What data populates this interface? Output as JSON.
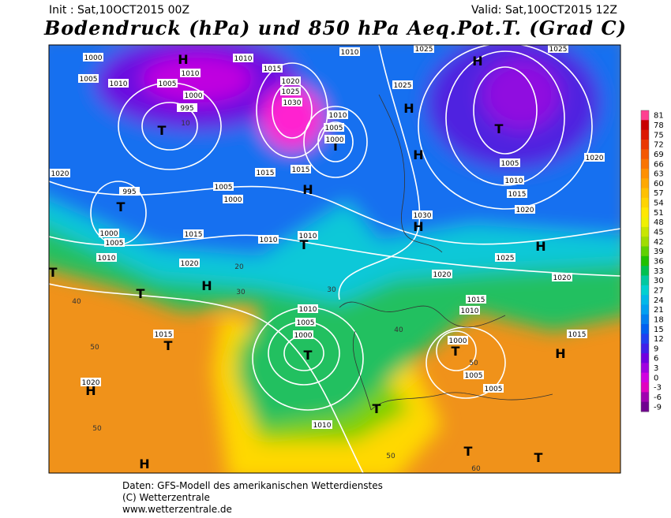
{
  "header": {
    "init": "Init : Sat,10OCT2015 00Z",
    "valid": "Valid: Sat,10OCT2015 12Z",
    "title": "Bodendruck (hPa) und 850 hPa Aeq.Pot.T. (Grad C)"
  },
  "map": {
    "pressure_centers": [
      "H",
      "H",
      "T",
      "T",
      "T",
      "H",
      "H",
      "H",
      "T",
      "H",
      "H",
      "T",
      "H",
      "T",
      "T",
      "T",
      "T",
      "H",
      "H",
      "T",
      "T",
      "T",
      "H",
      "T"
    ],
    "isobar_labels": [
      "1000",
      "1005",
      "1010",
      "1005",
      "1010",
      "1000",
      "995",
      "1010",
      "1015",
      "1020",
      "1025",
      "1030",
      "1010",
      "1010",
      "1005",
      "1000",
      "1025",
      "1025",
      "1025",
      "1005",
      "1010",
      "1015",
      "1020",
      "1020",
      "1020",
      "995",
      "1005",
      "1000",
      "1015",
      "1015",
      "1030",
      "1015",
      "1010",
      "1010",
      "1000",
      "1005",
      "1010",
      "1020",
      "1025",
      "1020",
      "1020",
      "1015",
      "1010",
      "1010",
      "1005",
      "1000",
      "1015",
      "1015",
      "1000",
      "1005",
      "1005",
      "1020",
      "1010"
    ],
    "temperature_labels": [
      "50",
      "40",
      "30",
      "20",
      "10",
      "50",
      "60",
      "50",
      "50",
      "30",
      "40"
    ]
  },
  "colorbar": {
    "levels": [
      81,
      78,
      75,
      72,
      69,
      66,
      63,
      60,
      57,
      54,
      51,
      48,
      45,
      42,
      39,
      36,
      33,
      30,
      27,
      24,
      21,
      18,
      15,
      12,
      9,
      6,
      3,
      0,
      -3,
      -6,
      -9
    ],
    "colors": [
      "#ff4090",
      "#c80000",
      "#dc1800",
      "#ea3800",
      "#f45800",
      "#fa7400",
      "#ff9000",
      "#ffa800",
      "#ffc000",
      "#ffd400",
      "#ffe800",
      "#f0f000",
      "#c8e600",
      "#a0dc00",
      "#60d000",
      "#20c000",
      "#00c050",
      "#00c8a0",
      "#00d0d0",
      "#00b8e8",
      "#00a0f0",
      "#0080f0",
      "#0060f0",
      "#2040f0",
      "#4020e8",
      "#7000e0",
      "#a000e0",
      "#d000e0",
      "#e000c0",
      "#a000b0",
      "#700090"
    ]
  },
  "footer": {
    "source": "Daten: GFS-Modell des amerikanischen Wetterdienstes",
    "copyright": "(C) Wetterzentrale",
    "url": "www.wetterzentrale.de"
  }
}
